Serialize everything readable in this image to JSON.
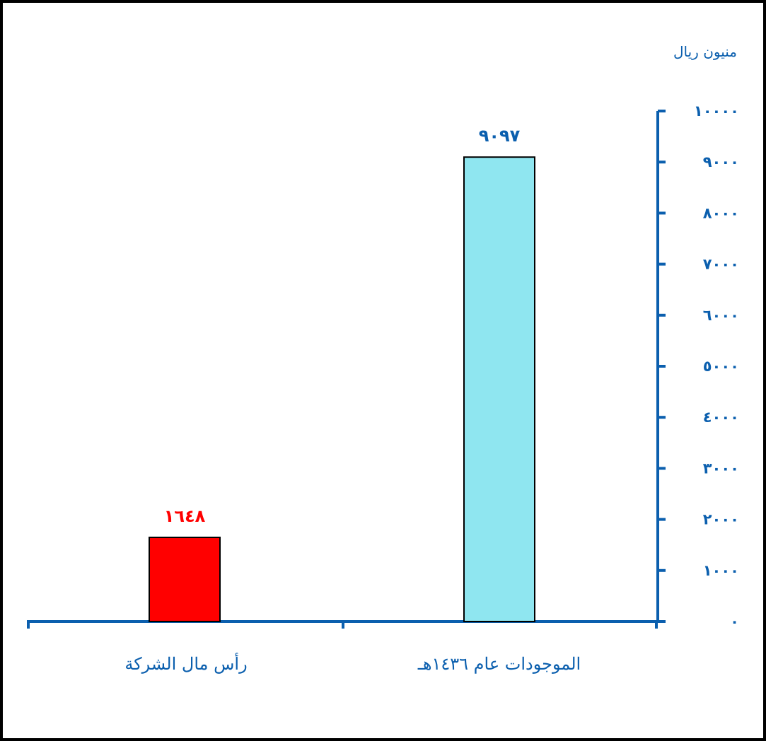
{
  "chart_data": {
    "type": "bar",
    "ylabel": "منيون ريال",
    "ylim": [
      0,
      10000
    ],
    "y_ticks": [
      0,
      1000,
      2000,
      3000,
      4000,
      5000,
      6000,
      7000,
      8000,
      9000,
      10000
    ],
    "y_tick_labels": [
      "٠",
      "١٠٠٠",
      "٢٠٠٠",
      "٣٠٠٠",
      "٤٠٠٠",
      "٥٠٠٠",
      "٦٠٠٠",
      "٧٠٠٠",
      "٨٠٠٠",
      "٩٠٠٠",
      "١٠٠٠٠"
    ],
    "categories": [
      "رأس مال الشركة",
      "الموجودات عام ١٤٣٦هـ"
    ],
    "values": [
      1648,
      9097
    ],
    "data_labels": [
      "١٦٤٨",
      "٩٠٩٧"
    ],
    "bar_colors": [
      "#ff0000",
      "#8fe6f0"
    ],
    "data_label_colors": [
      "#ff0000",
      "#0b5fae"
    ],
    "axis_color": "#0b5fae",
    "grid": false,
    "legend": "none"
  }
}
